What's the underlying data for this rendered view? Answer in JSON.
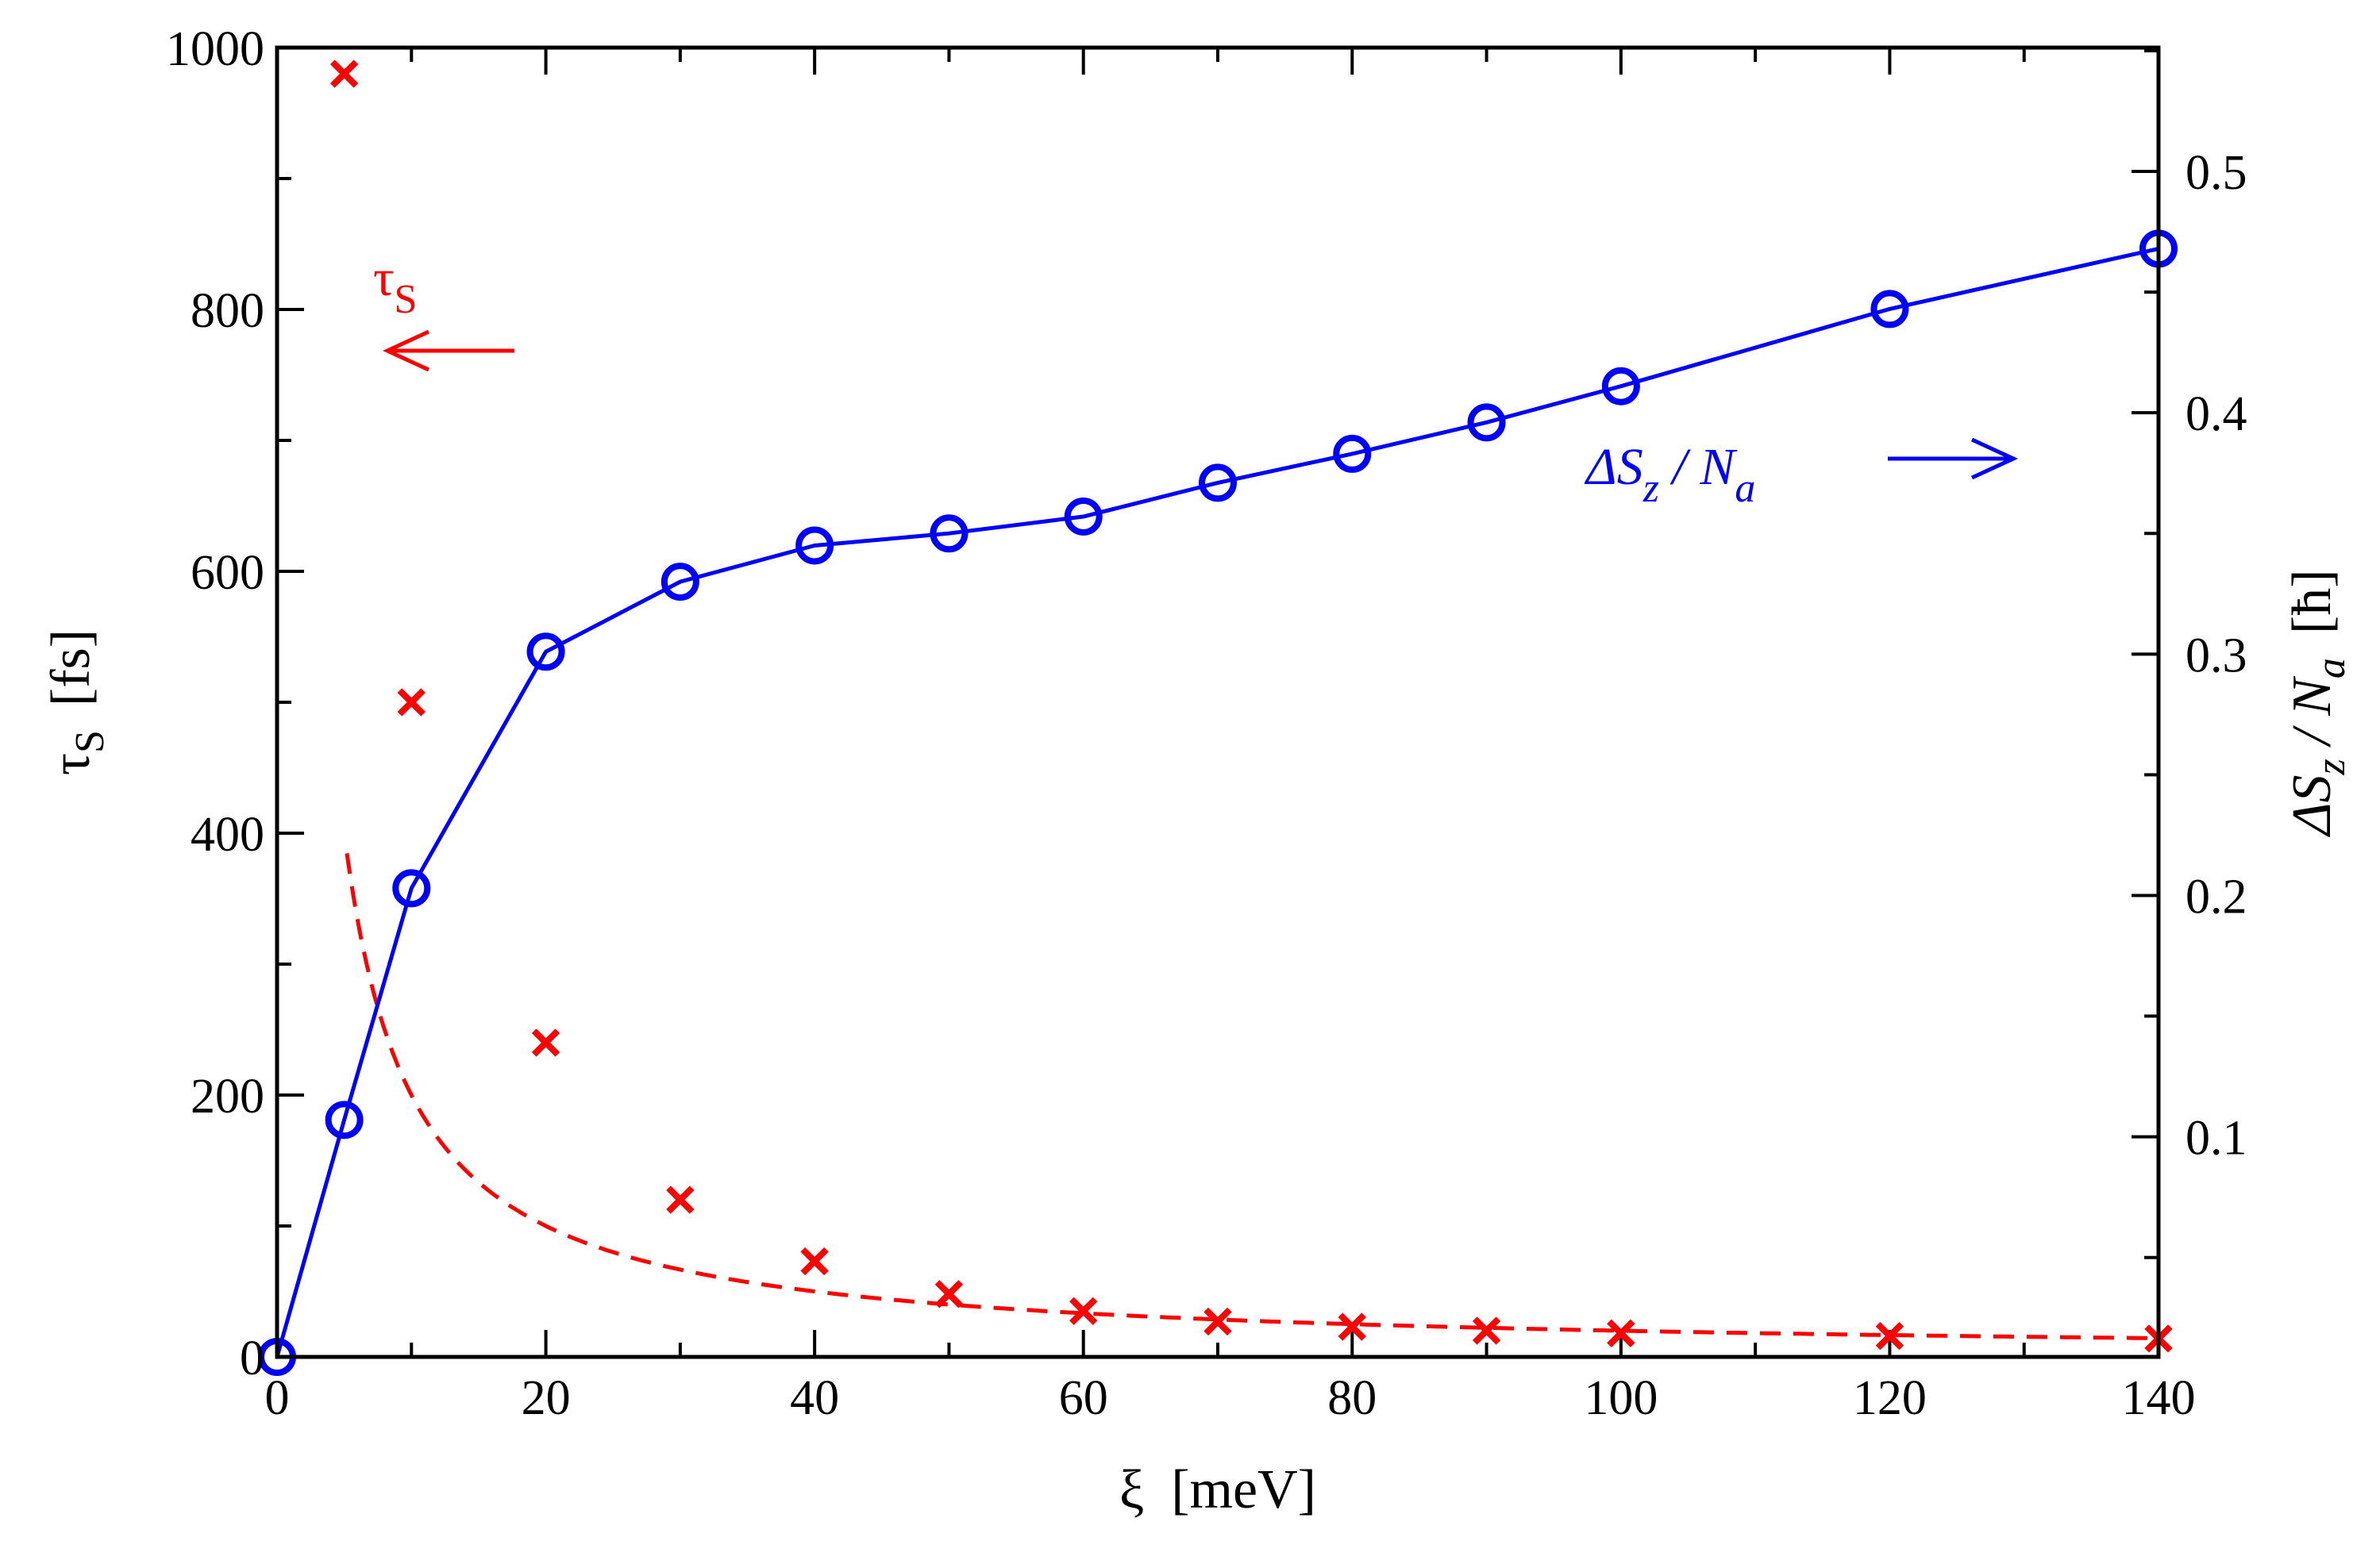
{
  "chart_data": {
    "type": "line",
    "title": "",
    "xlabel": {
      "symbol": "ξ",
      "unit": "[meV]"
    },
    "ylabel_left": {
      "symbol": "τ",
      "sub": "S",
      "unit": "[fs]"
    },
    "ylabel_right": {
      "prefix": "ΔS",
      "sub1": "z",
      "mid": " / N",
      "sub2": "a",
      "unit": "[ħ]"
    },
    "xlim": [
      0,
      140
    ],
    "ylim_left": [
      0,
      1000
    ],
    "ylim_right": [
      0.0088,
      0.5513
    ],
    "x_ticks": [
      0,
      20,
      40,
      60,
      80,
      100,
      120,
      140
    ],
    "y_left_ticks": [
      0,
      200,
      400,
      600,
      800,
      1000
    ],
    "y_right_ticks": [
      0.1,
      0.2,
      0.3,
      0.4,
      0.5
    ],
    "series": [
      {
        "name": "tau_S",
        "axis": "left",
        "color": "#ff0000",
        "marker": "x",
        "x": [
          5,
          10,
          20,
          30,
          40,
          50,
          60,
          70,
          80,
          90,
          100,
          120,
          140
        ],
        "values": [
          980,
          500,
          240,
          120,
          73,
          48,
          35,
          27,
          23,
          20,
          18,
          16,
          14
        ]
      },
      {
        "name": "tau_S fit",
        "axis": "left",
        "color": "#ff0000",
        "line": "dashed",
        "model": "A / xi",
        "A": 2000,
        "x_range": [
          5.2,
          140
        ]
      },
      {
        "name": "Delta S_z / N_a",
        "axis": "right",
        "color": "#0000ff",
        "marker": "o",
        "line": "solid",
        "x": [
          0,
          5,
          10,
          20,
          30,
          40,
          50,
          60,
          70,
          80,
          90,
          100,
          120,
          140
        ],
        "values": [
          0.0088,
          0.107,
          0.203,
          0.301,
          0.33,
          0.345,
          0.35,
          0.357,
          0.371,
          0.383,
          0.396,
          0.411,
          0.443,
          0.468
        ]
      }
    ],
    "annotations": {
      "tau": {
        "symbol": "τ",
        "sub": "S",
        "arrow": "left"
      },
      "delta": {
        "prefix": "ΔS",
        "sub1": "z",
        "mid": " / N",
        "sub2": "a",
        "arrow": "right"
      }
    }
  }
}
